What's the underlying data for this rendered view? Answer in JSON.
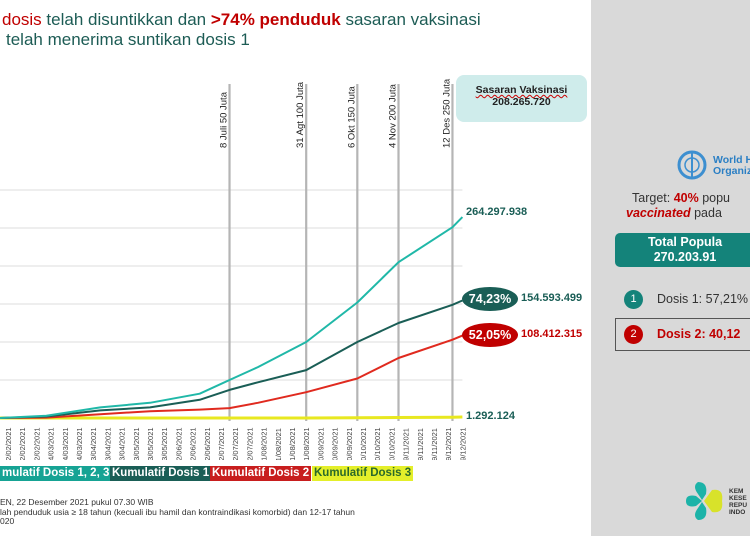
{
  "title": {
    "line1_a": "dosis",
    "line1_b": " telah disuntikkan dan ",
    "line1_c": ">74% penduduk",
    "line1_d": " sasaran vaksinasi",
    "line2": "telah menerima suntikan dosis 1"
  },
  "sasaran": {
    "label": "Sasaran Vaksinasi",
    "value": "208.265.720"
  },
  "colors": {
    "total": "#20b8a8",
    "dosis1": "#1a5e56",
    "dosis2": "#e02a1f",
    "dosis3": "#e8e820",
    "milestone": "#b5b5b5",
    "grid": "#dcdcdc"
  },
  "chart_data": {
    "type": "line",
    "xlabel": "",
    "ylabel": "",
    "ylim": [
      0,
      300000000
    ],
    "y_gridlines": [
      50000000,
      100000000,
      150000000,
      200000000,
      250000000,
      300000000
    ],
    "xlim": [
      "2021-01-27",
      "2021-12-19"
    ],
    "x_tick_labels": [
      "02/02/2021",
      "12/02/2021",
      "22/02/2021",
      "04/03/2021",
      "14/03/2021",
      "24/03/2021",
      "03/04/2021",
      "13/04/2021",
      "23/04/2021",
      "03/05/2021",
      "13/05/2021",
      "23/05/2021",
      "02/06/2021",
      "12/06/2021",
      "22/06/2021",
      "02/07/2021",
      "12/07/2021",
      "22/07/2021",
      "01/08/2021",
      "11/08/2021",
      "21/08/2021",
      "31/08/2021",
      "10/09/2021",
      "20/09/2021",
      "30/09/2021",
      "10/10/2021",
      "20/10/2021",
      "30/10/2021",
      "09/11/2021",
      "19/11/2021",
      "29/11/2021",
      "09/12/2021",
      "19/12/2021"
    ],
    "x": [
      "2021-01-27",
      "2021-03-01",
      "2021-04-08",
      "2021-05-13",
      "2021-06-17",
      "2021-07-08",
      "2021-07-28",
      "2021-08-31",
      "2021-10-06",
      "2021-11-04",
      "2021-12-12",
      "2021-12-19"
    ],
    "series": [
      {
        "name": "Kumulatif Dosis 1, 2, 3",
        "key": "total",
        "values": [
          0,
          3000000,
          14000000,
          20000000,
          32000000,
          50000000,
          67000000,
          100000000,
          152000000,
          205000000,
          251000000,
          264297938
        ]
      },
      {
        "name": "Kumulatif Dosis 1",
        "key": "dosis1",
        "values": [
          0,
          2000000,
          10000000,
          14000000,
          24000000,
          37000000,
          47000000,
          63000000,
          100000000,
          125000000,
          149000000,
          154593499
        ]
      },
      {
        "name": "Kumulatif Dosis 2",
        "key": "dosis2",
        "values": [
          0,
          500000,
          5000000,
          9000000,
          11000000,
          13000000,
          20000000,
          34000000,
          52000000,
          79000000,
          103000000,
          108412315
        ]
      },
      {
        "name": "Kumulatif Dosis 3",
        "key": "dosis3",
        "values": [
          0,
          0,
          0,
          0,
          0,
          0,
          0,
          0,
          300000,
          700000,
          1100000,
          1292124
        ]
      }
    ],
    "milestones": [
      {
        "date": "2021-07-08",
        "label": "8 Juli 50 Juta"
      },
      {
        "date": "2021-08-31",
        "label": "31 Agt 100 Juta"
      },
      {
        "date": "2021-10-06",
        "label": "6 Okt 150 Juta"
      },
      {
        "date": "2021-11-04",
        "label": "4 Nov 200 Juta"
      },
      {
        "date": "2021-12-12",
        "label": "12 Des 250 Juta"
      }
    ],
    "end_labels": {
      "total": "264.297.938",
      "dosis1_pct": "74,23%",
      "dosis1": "154.593.499",
      "dosis2_pct": "52,05%",
      "dosis2": "108.412.315",
      "dosis3": "1.292.124"
    },
    "legend": [
      "mulatif Dosis 1, 2, 3",
      "Kumulatif Dosis 1",
      "Kumulatif Dosis 2",
      "Kumulatif Dosis 3"
    ]
  },
  "footnotes": [
    "EN, 22 Desember 2021 pukul  07.30 WIB",
    "lah penduduk usia ≥ 18 tahun (kecuali ibu hamil dan kontraindikasi komorbid) dan 12-17 tahun",
    "020"
  ],
  "panel": {
    "who_line1": "World H",
    "who_line2": "Organiz",
    "target_a": "Target: ",
    "target_b": "40%",
    "target_c": " popu",
    "target2_a": "vaccinated",
    "target2_b": " pada ",
    "total_label": "Total Popula",
    "total_value": "270.203.91",
    "dose1_num": "1",
    "dose1_text": "Dosis 1: 57,21%",
    "dose2_num": "2",
    "dose2_text": "Dosis 2: 40,12",
    "kemenkes": [
      "KEM",
      "KESE",
      "REPU",
      "INDO"
    ]
  }
}
